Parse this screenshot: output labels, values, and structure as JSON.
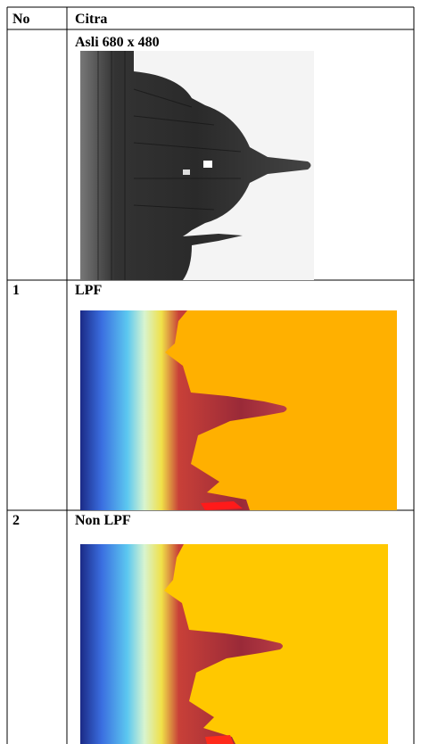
{
  "table": {
    "header": [
      "No",
      "Citra"
    ],
    "rows": [
      {
        "caption": "Asli 680 x 480"
      },
      {
        "no": "1",
        "caption": "LPF"
      },
      {
        "no": "2",
        "caption": "Non LPF"
      }
    ]
  }
}
